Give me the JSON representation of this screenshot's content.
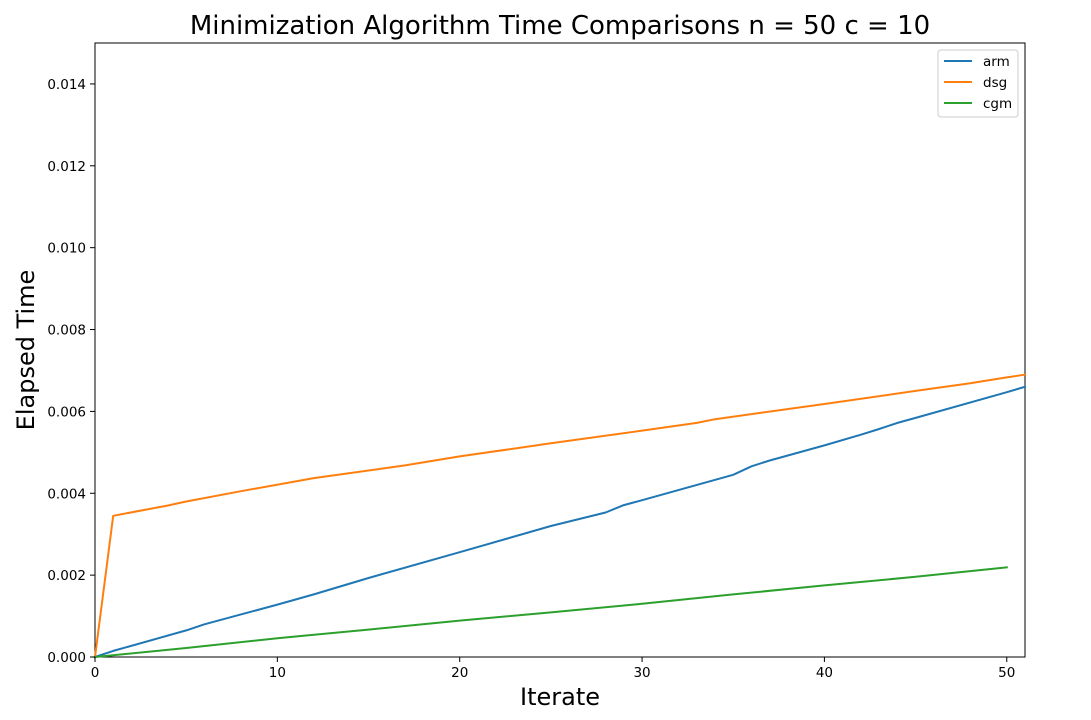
{
  "chart_data": {
    "type": "line",
    "title": "Minimization Algorithm Time Comparisons n = 50 c = 10",
    "xlabel": "Iterate",
    "ylabel": "Elapsed Time",
    "xlim": [
      0,
      51
    ],
    "ylim": [
      0,
      0.015
    ],
    "x_ticks": [
      "0",
      "10",
      "20",
      "30",
      "40",
      "50"
    ],
    "y_ticks": [
      "0.000",
      "0.002",
      "0.004",
      "0.006",
      "0.008",
      "0.010",
      "0.012",
      "0.014"
    ],
    "grid": false,
    "legend_position": "top-right",
    "series": [
      {
        "name": "arm",
        "color": "#1f77b4",
        "points": [
          [
            0,
            0
          ],
          [
            1,
            0.00015
          ],
          [
            5,
            0.00065
          ],
          [
            6,
            0.0008
          ],
          [
            10,
            0.00128
          ],
          [
            12,
            0.00153
          ],
          [
            15,
            0.00193
          ],
          [
            20,
            0.00256
          ],
          [
            25,
            0.0032
          ],
          [
            28,
            0.00353
          ],
          [
            29,
            0.00371
          ],
          [
            30,
            0.00383
          ],
          [
            35,
            0.00445
          ],
          [
            36,
            0.00466
          ],
          [
            37,
            0.0048
          ],
          [
            40,
            0.00517
          ],
          [
            42,
            0.00543
          ],
          [
            43,
            0.00557
          ],
          [
            44,
            0.00572
          ],
          [
            45,
            0.00584
          ],
          [
            50,
            0.00647
          ],
          [
            51,
            0.0066
          ]
        ]
      },
      {
        "name": "dsg",
        "color": "#ff7f0e",
        "points": [
          [
            0,
            0
          ],
          [
            1,
            0.00345
          ],
          [
            4,
            0.0037
          ],
          [
            5,
            0.0038
          ],
          [
            8,
            0.00405
          ],
          [
            12,
            0.00437
          ],
          [
            17,
            0.00468
          ],
          [
            20,
            0.0049
          ],
          [
            25,
            0.00522
          ],
          [
            30,
            0.00553
          ],
          [
            33,
            0.00572
          ],
          [
            34,
            0.00581
          ],
          [
            40,
            0.00618
          ],
          [
            45,
            0.0065
          ],
          [
            48,
            0.00669
          ],
          [
            50,
            0.00683
          ],
          [
            51,
            0.0069
          ]
        ]
      },
      {
        "name": "cgm",
        "color": "#2ca02c",
        "points": [
          [
            0,
            0
          ],
          [
            5,
            0.00022
          ],
          [
            10,
            0.00046
          ],
          [
            15,
            0.00067
          ],
          [
            20,
            0.00089
          ],
          [
            25,
            0.00109
          ],
          [
            30,
            0.0013
          ],
          [
            35,
            0.00153
          ],
          [
            40,
            0.00175
          ],
          [
            45,
            0.00196
          ],
          [
            50,
            0.00219
          ]
        ]
      }
    ]
  }
}
